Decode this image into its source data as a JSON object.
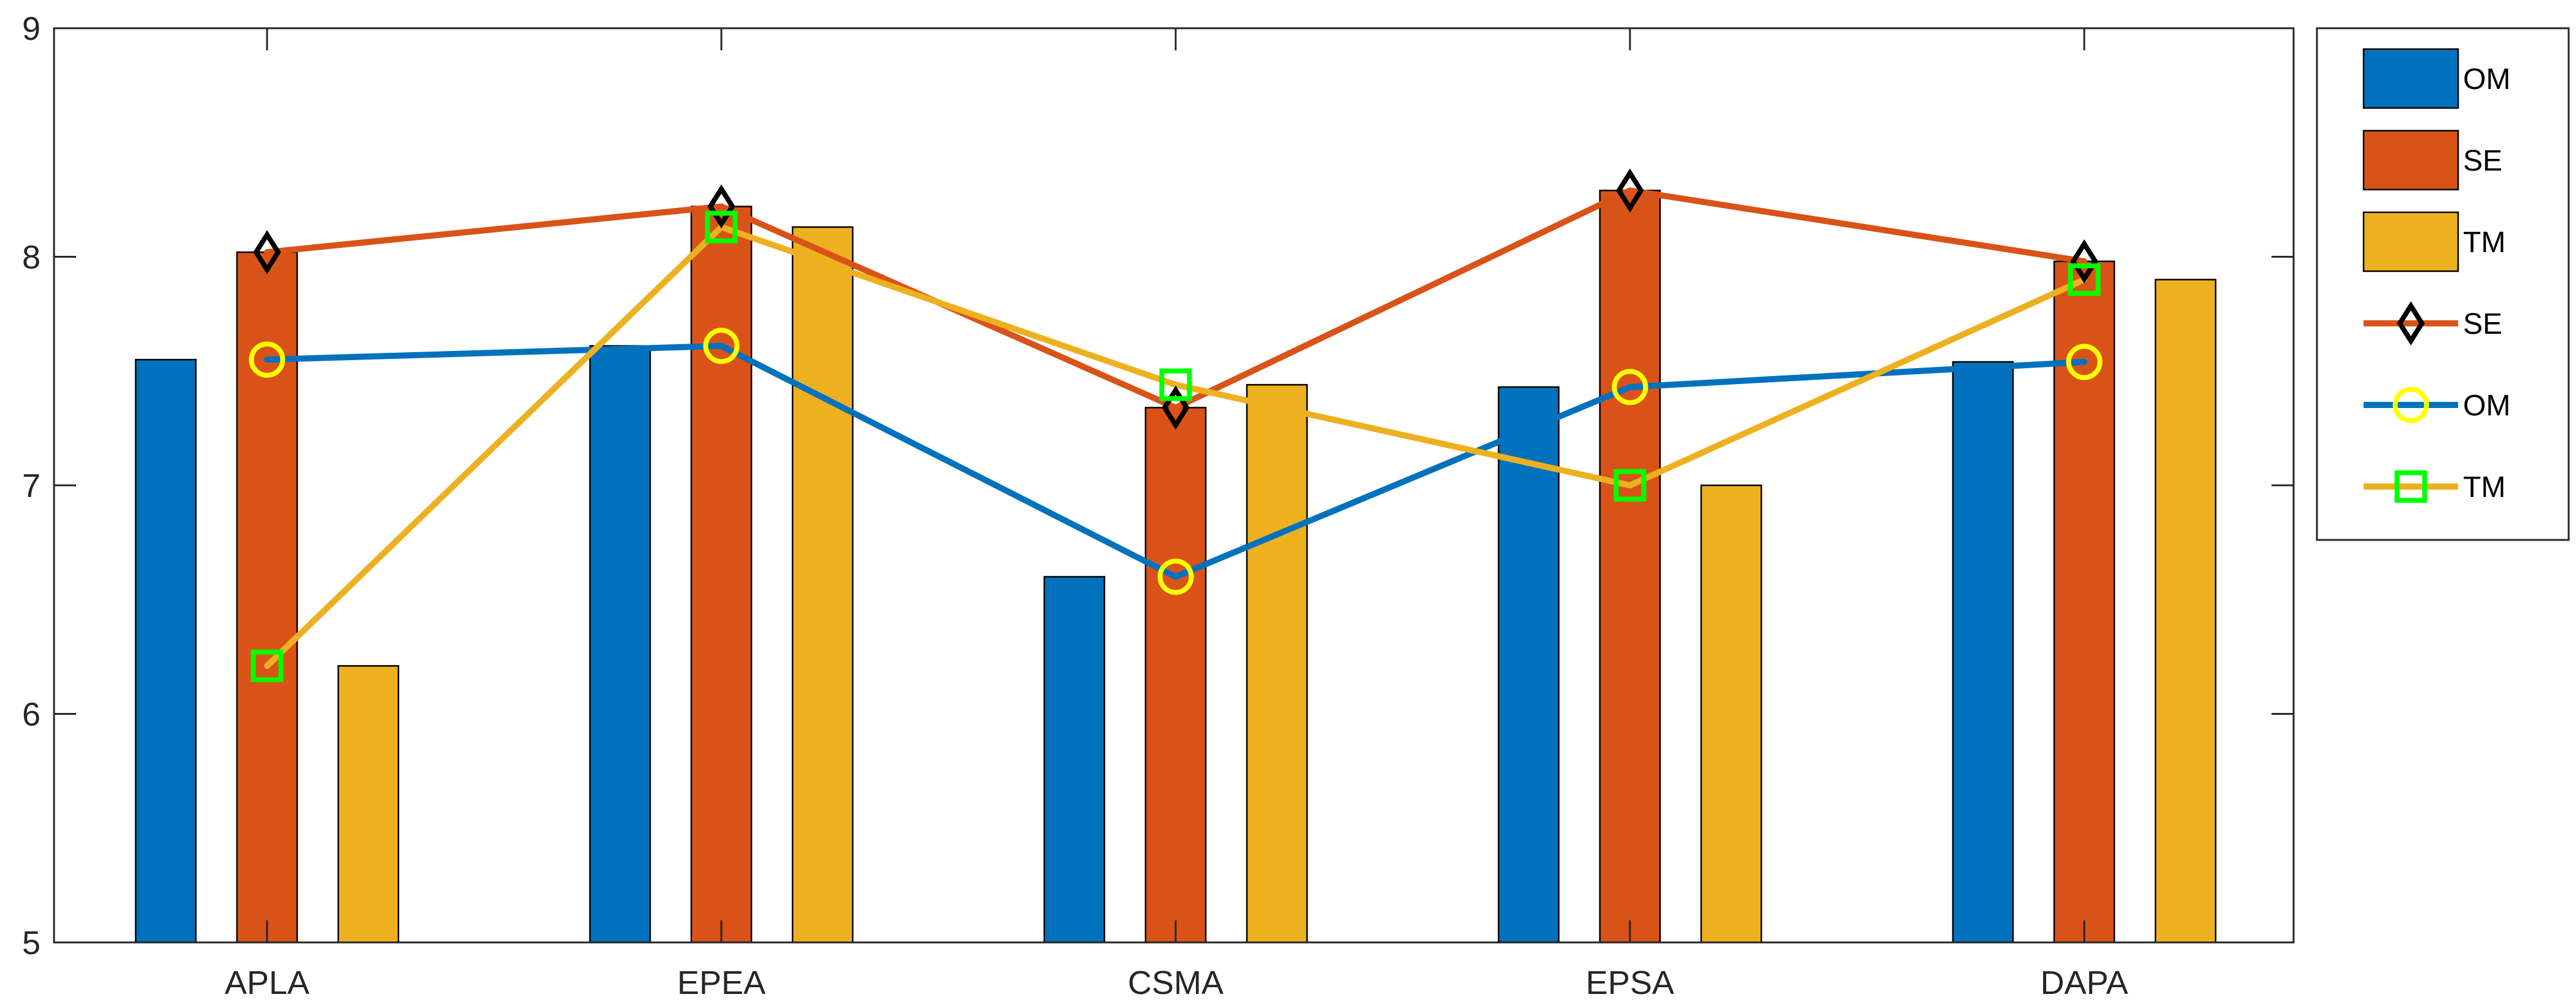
{
  "chart_data": {
    "type": "bar",
    "categories": [
      "APLA",
      "EPEA",
      "CSMA",
      "EPSA",
      "DAPA"
    ],
    "ylim": [
      5,
      9
    ],
    "yticks": [
      5,
      6,
      7,
      8,
      9
    ],
    "ytick_labels": [
      "5",
      "6",
      "7",
      "8",
      "9"
    ],
    "grid": false,
    "legend_position": "outside right, top",
    "bar_series": [
      {
        "name": "OM",
        "color": "#0072BD",
        "values": [
          7.55,
          7.61,
          6.6,
          7.43,
          7.54
        ]
      },
      {
        "name": "SE",
        "color": "#D95319",
        "values": [
          8.02,
          8.22,
          7.34,
          8.29,
          7.98
        ]
      },
      {
        "name": "TM",
        "color": "#EDB120",
        "values": [
          6.21,
          8.13,
          7.44,
          7.0,
          7.9
        ]
      }
    ],
    "line_series": [
      {
        "name": "SE",
        "color": "#D95319",
        "marker": "diamond",
        "marker_color": "#000000",
        "offset": "middle",
        "values": [
          8.02,
          8.22,
          7.34,
          8.29,
          7.98
        ]
      },
      {
        "name": "OM",
        "color": "#0072BD",
        "marker": "circle",
        "marker_color": "#FFFF00",
        "offset": "middle",
        "values": [
          7.55,
          7.61,
          6.6,
          7.43,
          7.54
        ]
      },
      {
        "name": "TM",
        "color": "#EDB120",
        "marker": "square",
        "marker_color": "#00FF00",
        "offset": "middle",
        "values": [
          6.21,
          8.13,
          7.44,
          7.0,
          7.9
        ]
      }
    ],
    "legend": [
      {
        "label": "OM",
        "kind": "bar",
        "color": "#0072BD"
      },
      {
        "label": "SE",
        "kind": "bar",
        "color": "#D95319"
      },
      {
        "label": "TM",
        "kind": "bar",
        "color": "#EDB120"
      },
      {
        "label": "SE",
        "kind": "line",
        "color": "#D95319",
        "marker": "diamond",
        "marker_color": "#000000"
      },
      {
        "label": "OM",
        "kind": "line",
        "color": "#0072BD",
        "marker": "circle",
        "marker_color": "#FFFF00"
      },
      {
        "label": "TM",
        "kind": "line",
        "color": "#EDB120",
        "marker": "square",
        "marker_color": "#00FF00"
      }
    ]
  }
}
